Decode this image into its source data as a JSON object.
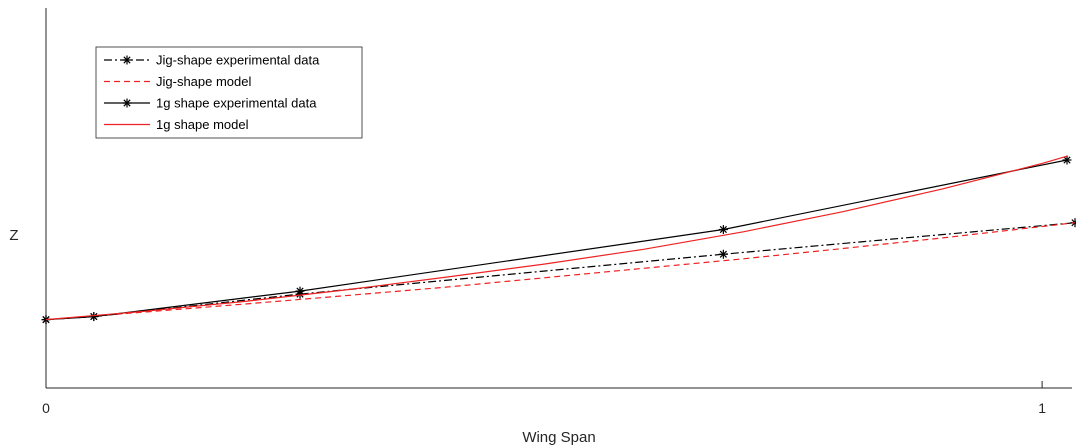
{
  "chart_data": {
    "type": "line",
    "title": "",
    "xlabel": "Wing Span",
    "ylabel": "Z",
    "xlim": [
      0,
      1.03
    ],
    "ylim": [
      0,
      1
    ],
    "xticks": [
      {
        "value": 0,
        "label": "0"
      },
      {
        "value": 1,
        "label": "1"
      }
    ],
    "yticks": [],
    "grid": false,
    "legend_position": "top-left",
    "series": [
      {
        "name": "Jig-shape experimental data",
        "color": "#000000",
        "dash": "dashdot",
        "marker": "asterisk",
        "x": [
          0.0,
          0.048,
          0.255,
          0.68,
          1.033
        ],
        "y": [
          0.18,
          0.188,
          0.247,
          0.352,
          0.435
        ]
      },
      {
        "name": "Jig-shape model",
        "color": "#ee2222",
        "dash": "dashed",
        "marker": "none",
        "x": [
          0.0,
          0.1,
          0.2,
          0.3,
          0.4,
          0.5,
          0.6,
          0.7,
          0.8,
          0.9,
          1.0,
          1.033
        ],
        "y": [
          0.18,
          0.2,
          0.221,
          0.243,
          0.265,
          0.29,
          0.315,
          0.34,
          0.367,
          0.395,
          0.425,
          0.435
        ]
      },
      {
        "name": "1g shape experimental data",
        "color": "#000000",
        "dash": "solid",
        "marker": "asterisk",
        "x": [
          0.0,
          0.048,
          0.255,
          0.68,
          1.025
        ],
        "y": [
          0.18,
          0.188,
          0.255,
          0.417,
          0.6
        ]
      },
      {
        "name": "1g shape model",
        "color": "#ee2222",
        "dash": "solid",
        "marker": "none",
        "x": [
          0.0,
          0.1,
          0.2,
          0.3,
          0.4,
          0.5,
          0.6,
          0.7,
          0.8,
          0.9,
          1.0,
          1.025
        ],
        "y": [
          0.18,
          0.202,
          0.228,
          0.258,
          0.291,
          0.326,
          0.365,
          0.411,
          0.464,
          0.524,
          0.591,
          0.61
        ]
      }
    ]
  }
}
